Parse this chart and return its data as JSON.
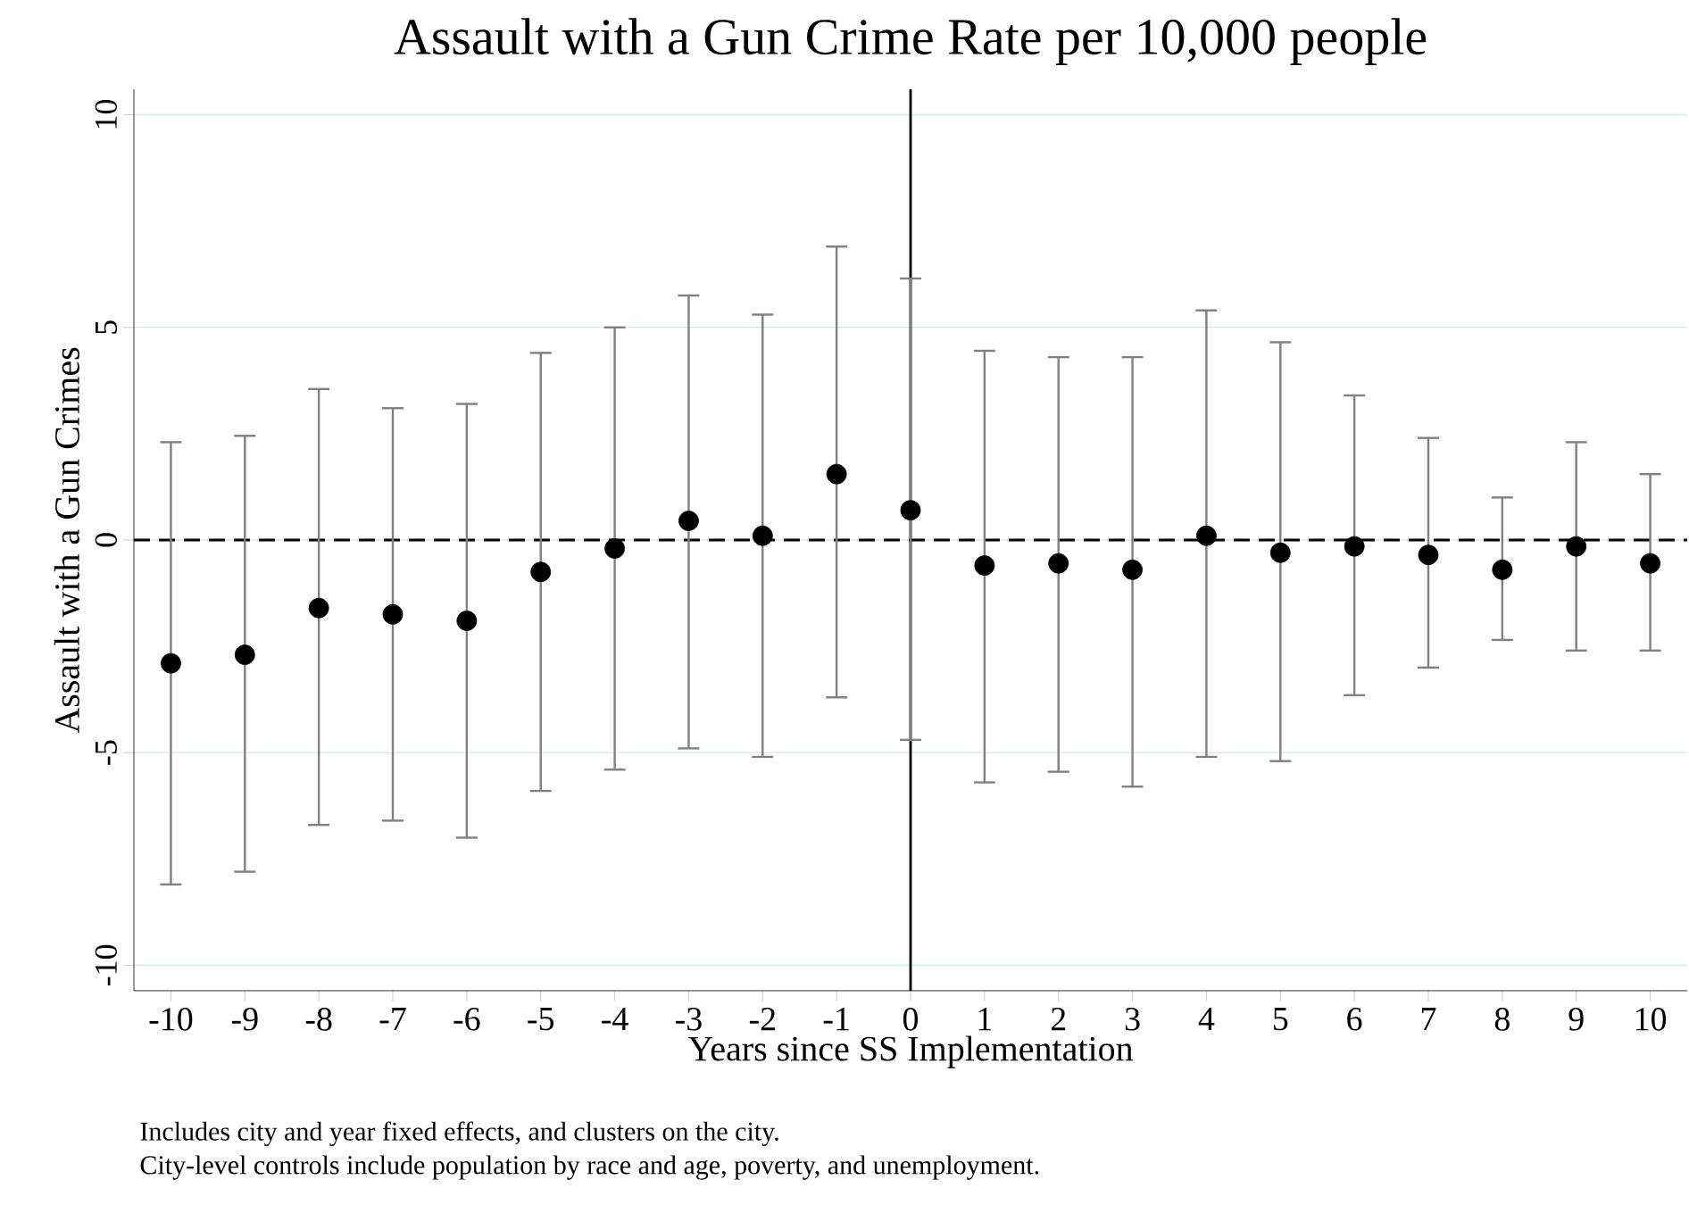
{
  "chart_data": {
    "type": "scatter",
    "title": "Assault with a Gun Crime Rate per 10,000 people",
    "xlabel": "Years since SS Implementation",
    "ylabel": "Assault with a Gun Crimes",
    "x": [
      -10,
      -9,
      -8,
      -7,
      -6,
      -5,
      -4,
      -3,
      -2,
      -1,
      0,
      1,
      2,
      3,
      4,
      5,
      6,
      7,
      8,
      9,
      10
    ],
    "series": [
      {
        "color": "#000000",
        "values": [
          -2.9,
          -2.7,
          -1.6,
          -1.75,
          -1.9,
          -0.75,
          -0.2,
          0.45,
          0.1,
          1.55,
          0.7,
          -0.6,
          -0.55,
          -0.7,
          0.1,
          -0.3,
          -0.15,
          -0.35,
          -0.7,
          -0.15,
          -0.55
        ],
        "errors": [
          [
            -8.1,
            2.3
          ],
          [
            -7.8,
            2.45
          ],
          [
            -6.7,
            3.55
          ],
          [
            -6.6,
            3.1
          ],
          [
            -7.0,
            3.2
          ],
          [
            -5.9,
            4.4
          ],
          [
            -5.4,
            5.0
          ],
          [
            -4.9,
            5.75
          ],
          [
            -5.1,
            5.3
          ],
          [
            -3.7,
            6.9
          ],
          [
            -4.7,
            6.15
          ],
          [
            -5.7,
            4.45
          ],
          [
            -5.45,
            4.3
          ],
          [
            -5.8,
            4.3
          ],
          [
            -5.1,
            5.4
          ],
          [
            -5.2,
            4.65
          ],
          [
            -3.65,
            3.4
          ],
          [
            -3.0,
            2.4
          ],
          [
            -2.35,
            1.0
          ],
          [
            -2.6,
            2.3
          ],
          [
            -2.6,
            1.55
          ]
        ]
      }
    ],
    "marker": "circle",
    "grid": "y",
    "xlim": [
      -10.5,
      10.5
    ],
    "ylim": [
      -10.6,
      10.6
    ],
    "xticks": [
      -10,
      -9,
      -8,
      -7,
      -6,
      -5,
      -4,
      -3,
      -2,
      -1,
      0,
      1,
      2,
      3,
      4,
      5,
      6,
      7,
      8,
      9,
      10
    ],
    "yticks": [
      -10,
      -5,
      0,
      5,
      10
    ],
    "ref_lines": [
      {
        "axis": "y",
        "value": 0,
        "color": "#000000",
        "line_style": "dashed"
      },
      {
        "axis": "x",
        "value": 0,
        "color": "#000000",
        "line_style": "solid"
      }
    ],
    "annotations": [
      "Includes city and year fixed effects, and clusters on the city.",
      "City-level controls include population by race and age, poverty, and unemployment."
    ]
  }
}
